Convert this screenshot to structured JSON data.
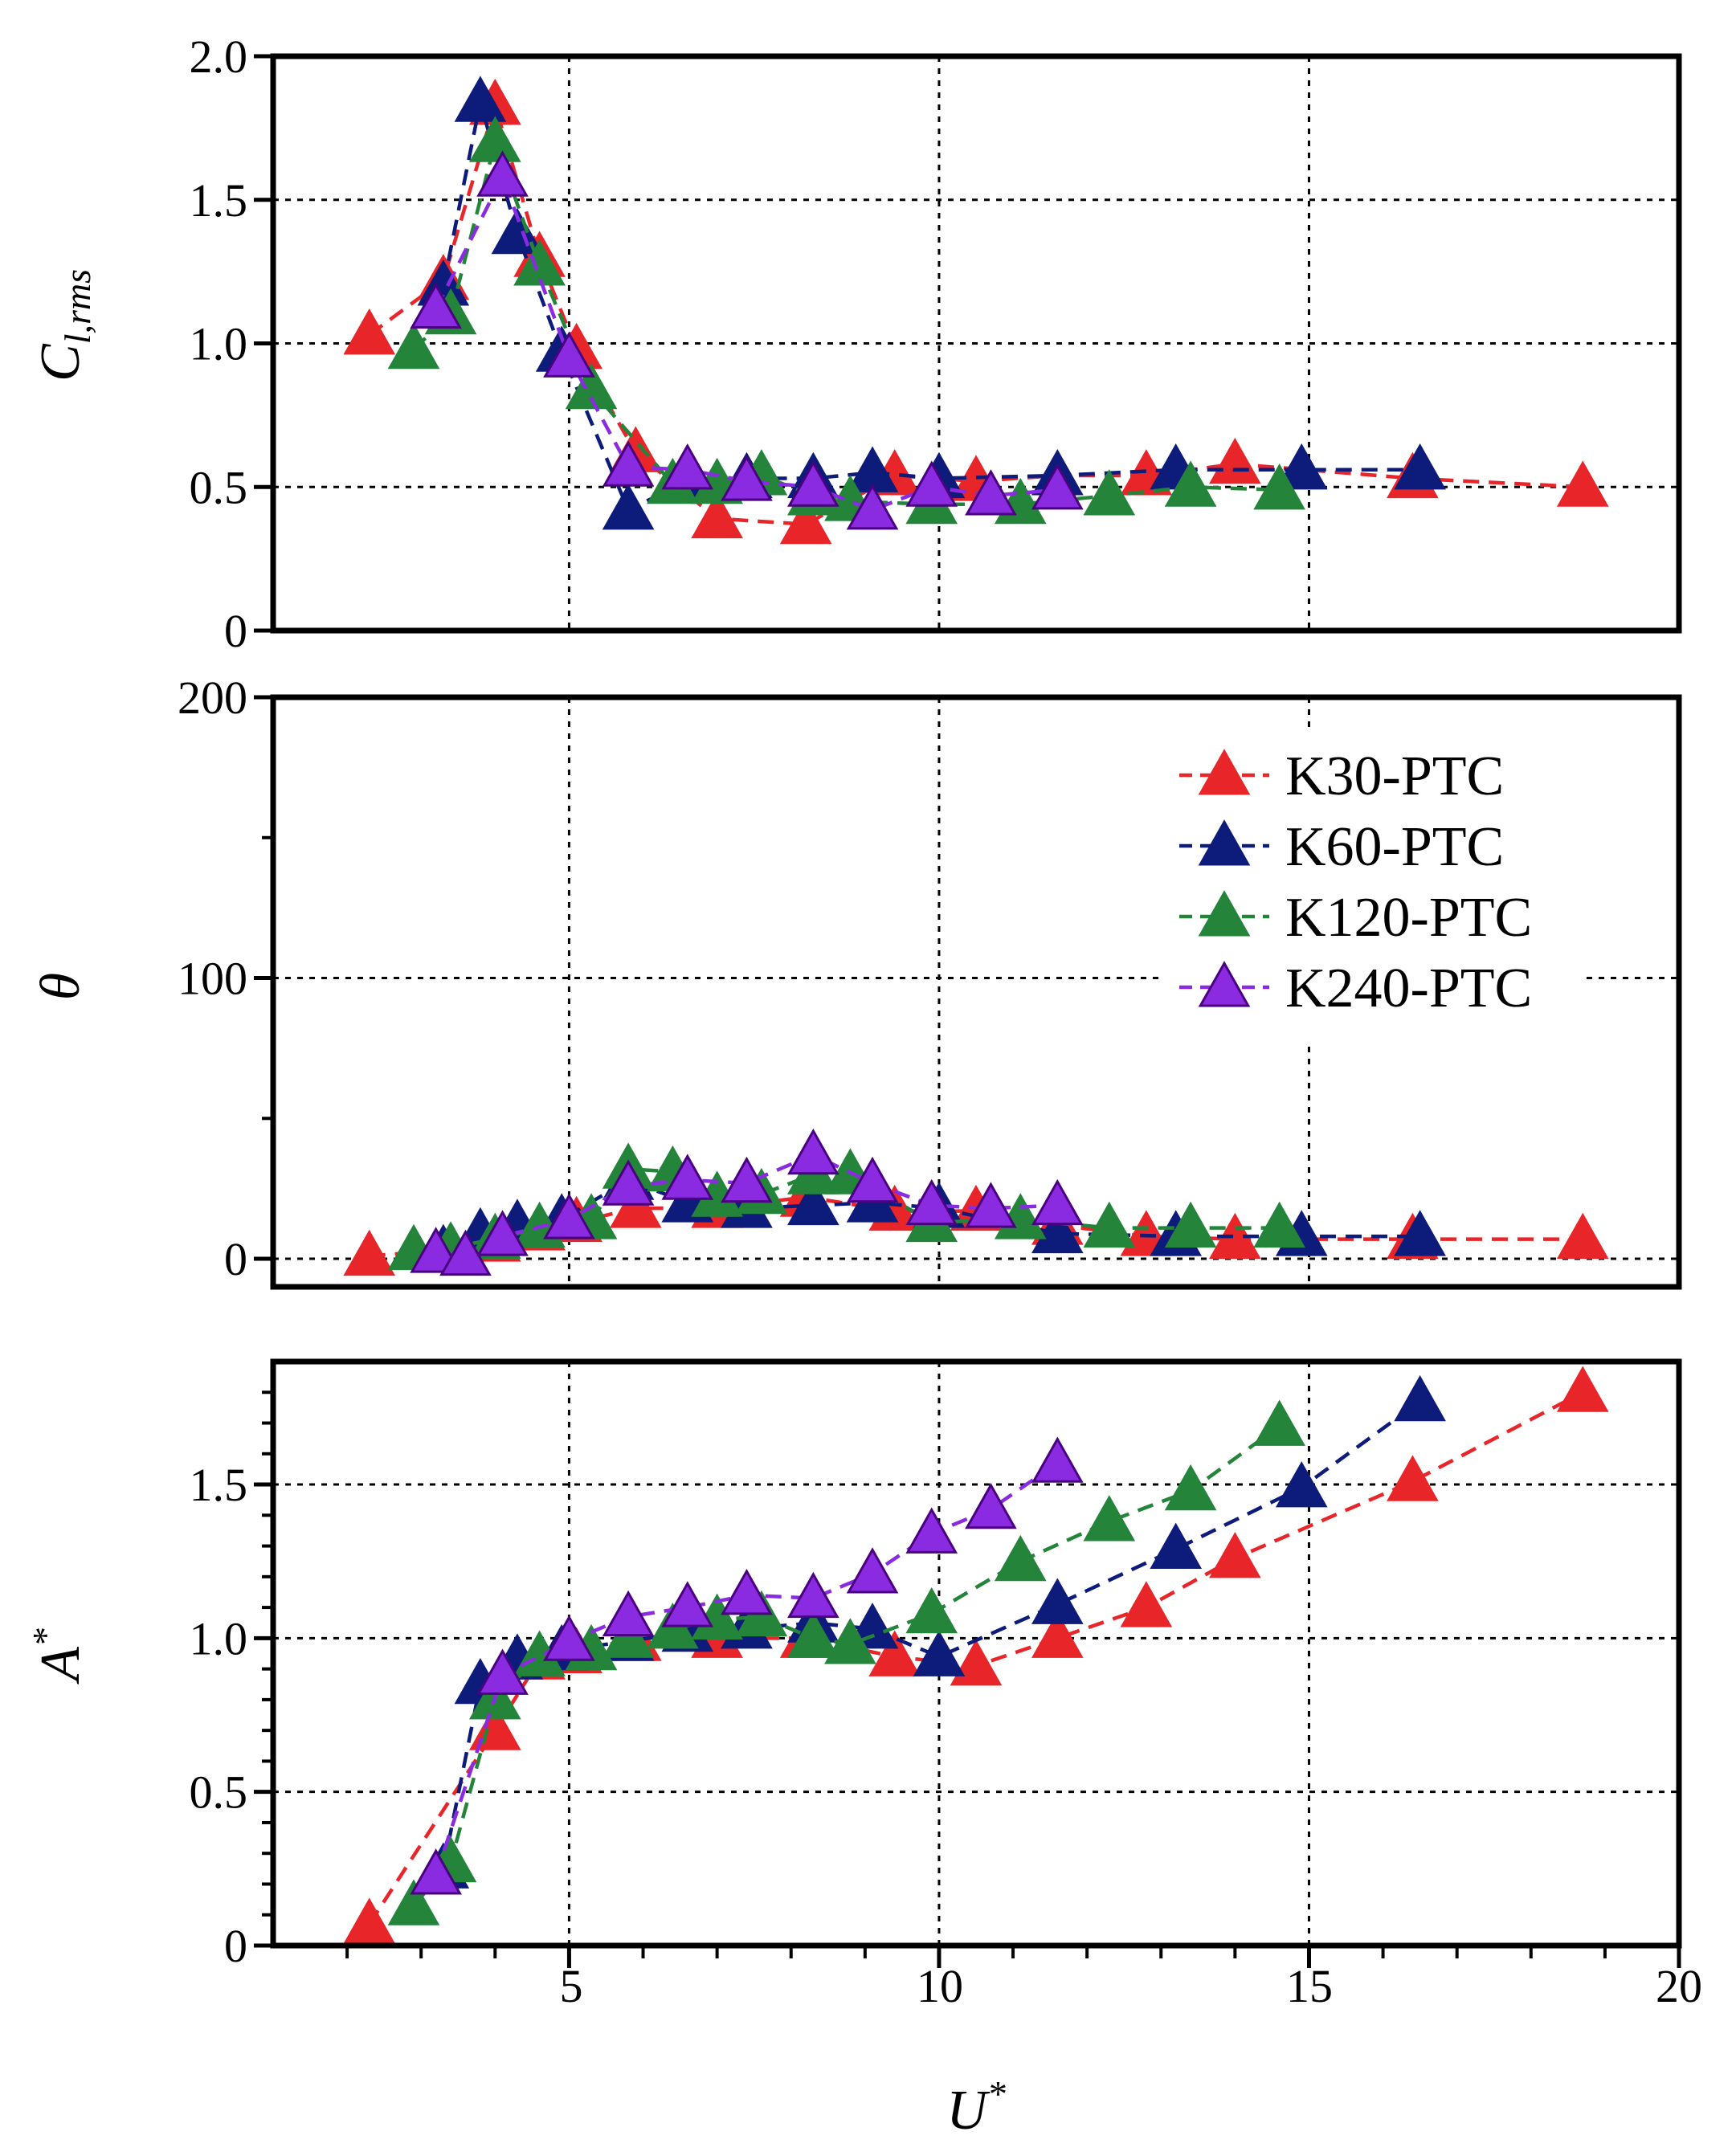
{
  "figure": {
    "xlabel": "U",
    "xlabel_sup": "*",
    "x_ticks": [
      "5",
      "10",
      "15",
      "20"
    ]
  },
  "legend": [
    {
      "label": "K30-PTC",
      "color": "#e8262a",
      "marker": "triangle-icon"
    },
    {
      "label": "K60-PTC",
      "color": "#0d1b7a",
      "marker": "triangle-icon"
    },
    {
      "label": "K120-PTC",
      "color": "#23843a",
      "marker": "triangle-icon"
    },
    {
      "label": "K240-PTC",
      "color": "#8a2be2",
      "marker": "triangle-icon"
    }
  ],
  "chart_data": [
    {
      "type": "line",
      "id": "clrms",
      "ylabel": "C",
      "ylabel_sub": "l,rms",
      "xlim": [
        1,
        20
      ],
      "ylim": [
        0,
        2.0
      ],
      "y_ticks": [
        0,
        0.5,
        1.0,
        1.5,
        2.0
      ],
      "y_tick_labels": [
        "0",
        "0.5",
        "1.0",
        "1.5",
        "2.0"
      ],
      "x_grid": [
        5,
        10,
        15
      ],
      "y_grid": [
        0.5,
        1.0,
        1.5,
        2.0
      ],
      "series": [
        {
          "name": "K30-PTC",
          "x": [
            2.3,
            3.3,
            4.0,
            4.6,
            5.1,
            5.9,
            7.0,
            8.2,
            9.4,
            10.5,
            11.6,
            12.8,
            14.0,
            16.4,
            18.7
          ],
          "y": [
            1.03,
            1.22,
            1.83,
            1.3,
            0.98,
            0.62,
            0.39,
            0.37,
            0.54,
            0.52,
            0.54,
            0.54,
            0.58,
            0.53,
            0.5
          ]
        },
        {
          "name": "K60-PTC",
          "x": [
            3.3,
            3.8,
            4.3,
            4.9,
            5.8,
            6.6,
            7.4,
            8.3,
            9.1,
            10.0,
            11.6,
            13.2,
            14.9,
            16.5
          ],
          "y": [
            1.2,
            1.84,
            1.38,
            0.97,
            0.42,
            0.52,
            0.53,
            0.53,
            0.55,
            0.53,
            0.54,
            0.56,
            0.56,
            0.56
          ]
        },
        {
          "name": "K120-PTC",
          "x": [
            2.9,
            3.4,
            4.0,
            4.6,
            5.3,
            6.4,
            7.0,
            7.6,
            8.3,
            8.8,
            9.9,
            11.1,
            12.3,
            13.4,
            14.6
          ],
          "y": [
            0.98,
            1.1,
            1.7,
            1.27,
            0.84,
            0.51,
            0.51,
            0.54,
            0.47,
            0.45,
            0.44,
            0.44,
            0.47,
            0.5,
            0.49
          ]
        },
        {
          "name": "K240-PTC",
          "x": [
            3.2,
            4.1,
            5.0,
            5.8,
            6.6,
            7.4,
            8.3,
            9.1,
            9.9,
            10.7,
            11.6
          ],
          "y": [
            1.12,
            1.58,
            0.95,
            0.57,
            0.56,
            0.52,
            0.5,
            0.42,
            0.5,
            0.47,
            0.49
          ]
        }
      ]
    },
    {
      "type": "line",
      "id": "theta",
      "ylabel": "θ",
      "xlim": [
        1,
        20
      ],
      "ylim": [
        -10,
        200
      ],
      "y_ticks": [
        0,
        100,
        200
      ],
      "y_tick_labels": [
        "0",
        "100",
        "200"
      ],
      "y_minor_ticks": [
        50,
        150
      ],
      "x_grid": [
        5,
        10,
        15
      ],
      "y_grid": [
        0,
        100
      ],
      "series": [
        {
          "name": "K30-PTC",
          "x": [
            2.3,
            3.3,
            4.0,
            4.6,
            5.1,
            5.9,
            7.0,
            8.2,
            9.4,
            10.5,
            11.6,
            12.8,
            14.0,
            16.4,
            18.7
          ],
          "y": [
            1,
            3,
            6,
            10,
            13,
            18,
            18,
            22,
            17,
            17,
            12,
            8,
            7,
            7,
            7
          ]
        },
        {
          "name": "K60-PTC",
          "x": [
            3.3,
            3.8,
            4.3,
            4.9,
            5.8,
            6.6,
            7.4,
            8.3,
            9.1,
            10.0,
            11.6,
            13.2,
            14.9,
            16.5
          ],
          "y": [
            3,
            9,
            12,
            14,
            28,
            20,
            18,
            19,
            20,
            18,
            9,
            8,
            8,
            8
          ]
        },
        {
          "name": "K120-PTC",
          "x": [
            2.9,
            3.4,
            4.0,
            4.6,
            5.3,
            5.8,
            6.4,
            7.0,
            7.6,
            8.3,
            8.8,
            9.9,
            11.1,
            12.3,
            13.4,
            14.6
          ],
          "y": [
            3,
            4,
            7,
            11,
            14,
            32,
            31,
            22,
            23,
            30,
            30,
            13,
            14,
            11,
            11,
            11
          ]
        },
        {
          "name": "K240-PTC",
          "x": [
            3.2,
            3.6,
            4.1,
            5.0,
            5.8,
            6.6,
            7.4,
            8.3,
            9.1,
            9.9,
            10.7,
            11.6
          ],
          "y": [
            2,
            1,
            8,
            14,
            26,
            28,
            27,
            37,
            27,
            19,
            18,
            19
          ]
        }
      ]
    },
    {
      "type": "line",
      "id": "amplitude",
      "ylabel": "A",
      "ylabel_sup": "*",
      "xlim": [
        1,
        20
      ],
      "ylim": [
        0,
        1.9
      ],
      "y_ticks": [
        0,
        0.5,
        1.0,
        1.5
      ],
      "y_tick_labels": [
        "0",
        "0.5",
        "1.0",
        "1.5"
      ],
      "x_grid": [
        5,
        10,
        15
      ],
      "y_grid": [
        0.5,
        1.0,
        1.5
      ],
      "series": [
        {
          "name": "K30-PTC",
          "x": [
            2.3,
            4.0,
            4.6,
            5.1,
            5.9,
            7.0,
            8.2,
            9.4,
            10.5,
            11.6,
            12.8,
            14.0,
            16.4,
            18.7
          ],
          "y": [
            0.07,
            0.7,
            0.93,
            0.95,
            0.99,
            1.0,
            1.0,
            0.94,
            0.91,
            1.0,
            1.1,
            1.26,
            1.51,
            1.8
          ]
        },
        {
          "name": "K60-PTC",
          "x": [
            3.3,
            3.8,
            4.3,
            4.9,
            5.8,
            6.6,
            7.4,
            8.3,
            9.1,
            10.0,
            11.6,
            13.2,
            14.9,
            16.5
          ],
          "y": [
            0.25,
            0.85,
            0.93,
            0.96,
            0.99,
            1.02,
            1.03,
            1.05,
            1.03,
            0.94,
            1.11,
            1.29,
            1.49,
            1.77
          ]
        },
        {
          "name": "K120-PTC",
          "x": [
            2.9,
            3.4,
            4.0,
            4.6,
            5.3,
            5.8,
            6.4,
            7.0,
            7.6,
            8.3,
            8.8,
            9.9,
            11.1,
            12.3,
            13.4,
            14.6
          ],
          "y": [
            0.13,
            0.27,
            0.8,
            0.94,
            0.96,
            1.0,
            1.03,
            1.06,
            1.07,
            1.0,
            0.98,
            1.08,
            1.25,
            1.38,
            1.48,
            1.69
          ]
        },
        {
          "name": "K240-PTC",
          "x": [
            3.2,
            4.1,
            5.0,
            5.8,
            6.6,
            7.4,
            8.3,
            9.1,
            9.9,
            10.7,
            11.6
          ],
          "y": [
            0.23,
            0.88,
            0.99,
            1.07,
            1.1,
            1.14,
            1.13,
            1.21,
            1.34,
            1.42,
            1.57
          ]
        }
      ]
    }
  ]
}
